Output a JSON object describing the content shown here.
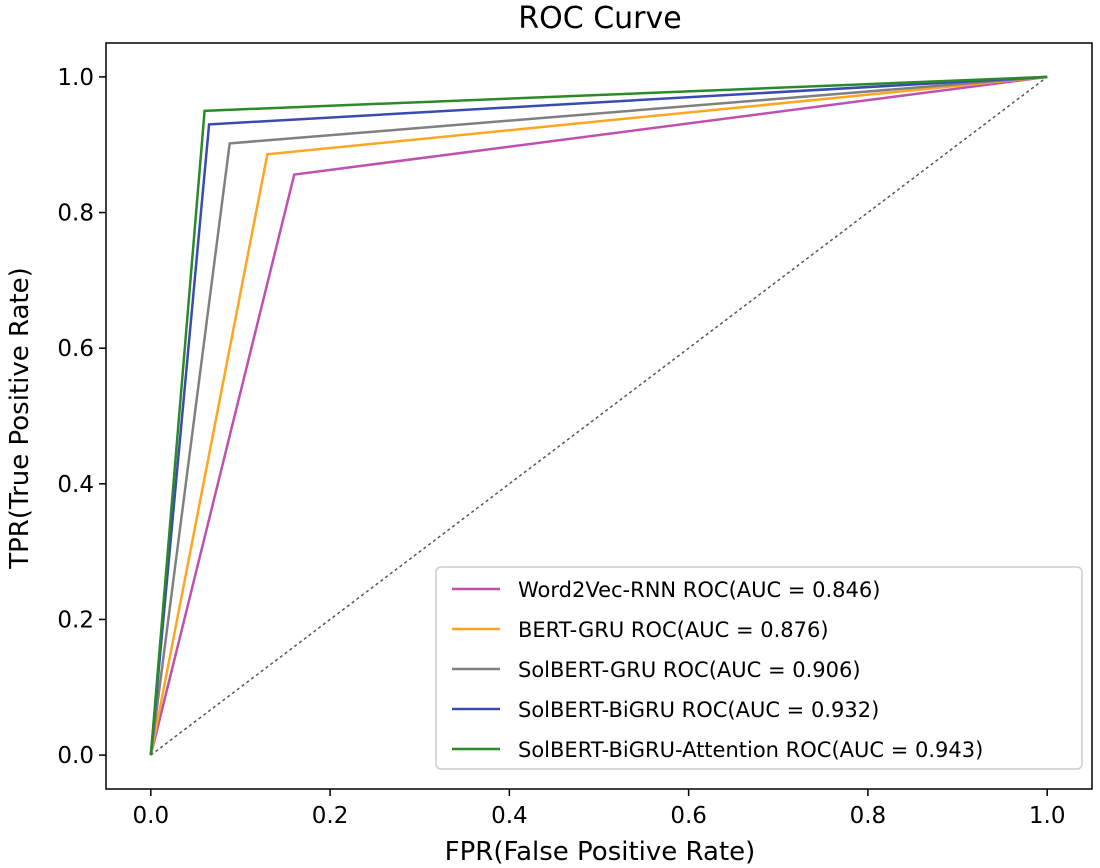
{
  "chart_data": {
    "type": "line",
    "title": "ROC Curve",
    "xlabel": "FPR(False Positive Rate)",
    "ylabel": "TPR(True Positive Rate)",
    "xlim": [
      -0.05,
      1.05
    ],
    "ylim": [
      -0.05,
      1.05
    ],
    "xticks": [
      0.0,
      0.2,
      0.4,
      0.6,
      0.8,
      1.0
    ],
    "yticks": [
      0.0,
      0.2,
      0.4,
      0.6,
      0.8,
      1.0
    ],
    "xtick_labels": [
      "0.0",
      "0.2",
      "0.4",
      "0.6",
      "0.8",
      "1.0"
    ],
    "ytick_labels": [
      "0.0",
      "0.2",
      "0.4",
      "0.6",
      "0.8",
      "1.0"
    ],
    "grid": false,
    "legend_position": "lower-right",
    "diagonal": {
      "x": [
        0,
        1
      ],
      "y": [
        0,
        1
      ],
      "style": "dotted",
      "color": "#555555"
    },
    "series": [
      {
        "name": "Word2Vec-RNN ROC(AUC = 0.846)",
        "color": "#c04fb0",
        "x": [
          0,
          0.16,
          1
        ],
        "y": [
          0,
          0.856,
          1
        ]
      },
      {
        "name": "BERT-GRU ROC(AUC = 0.876)",
        "color": "#ffa620",
        "x": [
          0,
          0.13,
          1
        ],
        "y": [
          0,
          0.886,
          1
        ]
      },
      {
        "name": "SolBERT-GRU ROC(AUC = 0.906)",
        "color": "#808080",
        "x": [
          0,
          0.088,
          1
        ],
        "y": [
          0,
          0.902,
          1
        ]
      },
      {
        "name": "SolBERT-BiGRU ROC(AUC = 0.932)",
        "color": "#3a4bb0",
        "x": [
          0,
          0.065,
          1
        ],
        "y": [
          0,
          0.93,
          1
        ]
      },
      {
        "name": "SolBERT-BiGRU-Attention ROC(AUC = 0.943)",
        "color": "#2a8a2a",
        "x": [
          0,
          0.06,
          1
        ],
        "y": [
          0,
          0.95,
          1
        ]
      }
    ]
  }
}
